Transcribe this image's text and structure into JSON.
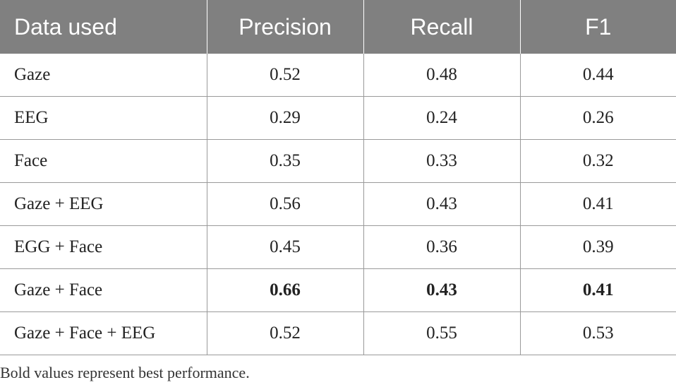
{
  "table": {
    "headers": [
      "Data used",
      "Precision",
      "Recall",
      "F1"
    ],
    "rows": [
      {
        "data_used": "Gaze",
        "precision": "0.52",
        "recall": "0.48",
        "f1": "0.44",
        "best": false
      },
      {
        "data_used": "EEG",
        "precision": "0.29",
        "recall": "0.24",
        "f1": "0.26",
        "best": false
      },
      {
        "data_used": "Face",
        "precision": "0.35",
        "recall": "0.33",
        "f1": "0.32",
        "best": false
      },
      {
        "data_used": "Gaze + EEG",
        "precision": "0.56",
        "recall": "0.43",
        "f1": "0.41",
        "best": false
      },
      {
        "data_used": "EGG + Face",
        "precision": "0.45",
        "recall": "0.36",
        "f1": "0.39",
        "best": false
      },
      {
        "data_used": "Gaze + Face",
        "precision": "0.66",
        "recall": "0.43",
        "f1": "0.41",
        "best": true
      },
      {
        "data_used": "Gaze + Face + EEG",
        "precision": "0.52",
        "recall": "0.55",
        "f1": "0.53",
        "best": false
      }
    ]
  },
  "footnote": "Bold values represent best performance.",
  "colors": {
    "header_bg": "#808080",
    "header_text": "#ffffff",
    "rule": "#9a9a9a"
  }
}
